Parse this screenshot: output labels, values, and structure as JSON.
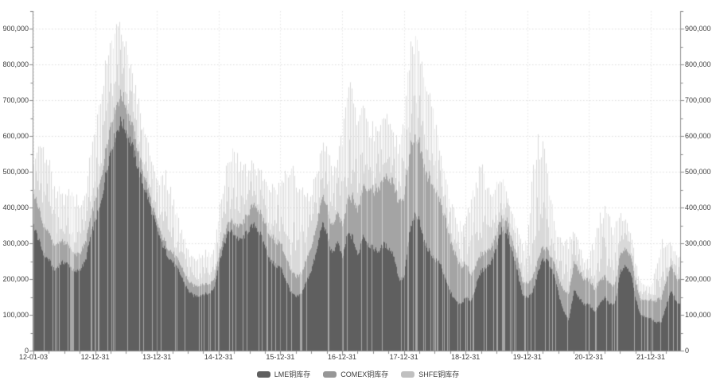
{
  "page": {
    "background": "#ffffff"
  },
  "chart_data": {
    "type": "area",
    "variant": "stacked daily bars",
    "title": "",
    "value_unit": "thousand tonnes (axis shows tonnes)",
    "x_axis": {
      "start": "2012-01",
      "end": "2022-06",
      "interval": "monthly anchors",
      "n_points": 126,
      "tick_labels": [
        "12-01-03",
        "12-12-31",
        "13-12-31",
        "14-12-31",
        "15-12-31",
        "16-12-31",
        "17-12-31",
        "18-12-31",
        "19-12-31",
        "20-12-31",
        "21-12-31"
      ],
      "minor_tick_interval": "3 months"
    },
    "y_axis": {
      "min": 0,
      "max": 950000,
      "major_interval": 100000,
      "minor_interval": 50000,
      "sides": [
        "left",
        "right"
      ],
      "tick_labels": [
        "0",
        "100,000",
        "200,000",
        "300,000",
        "400,000",
        "500,000",
        "600,000",
        "700,000",
        "800,000",
        "900,000"
      ]
    },
    "grid": {
      "horizontal": "dotted at each 100,000",
      "vertical": "faint line at each year tick"
    },
    "legend": {
      "position": "bottom-center",
      "items": [
        {
          "label": "LME铜库存",
          "color": "#5f5f5f"
        },
        {
          "label": "COMEX铜库存",
          "color": "#979797"
        },
        {
          "label": "SHFE铜库存",
          "color": "#c0c0c0"
        }
      ]
    },
    "style": {
      "lme_fill": "#5f5f5f",
      "comex_fill": "#a4a4a4",
      "shfe_fill": "#d9d9d9",
      "axis_color": "#8a8a8a",
      "grid_color": "#dcdcdc",
      "label_color": "#3d3d3d",
      "background": "#ffffff"
    },
    "series": [
      {
        "name": "LME铜库存",
        "values": [
          355,
          310,
          270,
          255,
          225,
          245,
          250,
          240,
          220,
          230,
          250,
          320,
          370,
          410,
          500,
          570,
          615,
          650,
          620,
          585,
          530,
          480,
          440,
          390,
          340,
          300,
          270,
          250,
          230,
          200,
          170,
          155,
          155,
          160,
          160,
          175,
          250,
          300,
          340,
          330,
          310,
          325,
          345,
          355,
          330,
          295,
          255,
          240,
          235,
          200,
          165,
          150,
          160,
          195,
          230,
          280,
          360,
          330,
          270,
          310,
          260,
          330,
          320,
          265,
          330,
          300,
          290,
          280,
          300,
          290,
          270,
          200,
          205,
          330,
          380,
          370,
          300,
          280,
          255,
          250,
          200,
          165,
          140,
          130,
          150,
          140,
          185,
          225,
          235,
          255,
          300,
          345,
          335,
          280,
          225,
          155,
          150,
          165,
          220,
          260,
          250,
          220,
          160,
          110,
          85,
          170,
          150,
          130,
          130,
          110,
          130,
          150,
          130,
          135,
          225,
          240,
          225,
          145,
          100,
          95,
          90,
          78,
          82,
          130,
          170,
          135
        ]
      },
      {
        "name": "COMEX铜库存",
        "values": [
          92,
          88,
          82,
          76,
          70,
          64,
          58,
          54,
          50,
          48,
          50,
          56,
          62,
          68,
          74,
          78,
          80,
          76,
          70,
          60,
          50,
          40,
          30,
          22,
          20,
          22,
          24,
          26,
          27,
          28,
          28,
          29,
          30,
          30,
          28,
          26,
          25,
          26,
          28,
          32,
          38,
          45,
          52,
          58,
          62,
          66,
          70,
          72,
          70,
          65,
          60,
          58,
          60,
          64,
          68,
          72,
          76,
          78,
          80,
          84,
          90,
          100,
          115,
          130,
          145,
          160,
          170,
          180,
          190,
          200,
          210,
          220,
          228,
          232,
          230,
          225,
          218,
          210,
          200,
          185,
          170,
          155,
          130,
          110,
          95,
          75,
          60,
          50,
          45,
          40,
          38,
          36,
          34,
          33,
          35,
          38,
          40,
          42,
          38,
          35,
          32,
          35,
          45,
          60,
          75,
          82,
          78,
          70,
          70,
          66,
          64,
          62,
          58,
          55,
          52,
          50,
          48,
          46,
          45,
          48,
          55,
          62,
          70,
          74,
          72,
          68
        ]
      },
      {
        "name": "SHFE铜库存",
        "values": [
          100,
          205,
          227,
          205,
          170,
          150,
          140,
          158,
          170,
          160,
          150,
          180,
          205,
          225,
          247,
          235,
          225,
          200,
          180,
          160,
          150,
          140,
          132,
          125,
          132,
          180,
          200,
          160,
          120,
          100,
          92,
          86,
          90,
          95,
          92,
          96,
          112,
          160,
          185,
          215,
          180,
          142,
          122,
          112,
          122,
          132,
          142,
          162,
          185,
          245,
          305,
          285,
          240,
          190,
          170,
          152,
          142,
          185,
          160,
          152,
          272,
          325,
          312,
          272,
          232,
          192,
          172,
          182,
          202,
          172,
          162,
          166,
          232,
          282,
          302,
          292,
          252,
          232,
          202,
          162,
          132,
          122,
          112,
          116,
          136,
          232,
          262,
          252,
          202,
          162,
          142,
          112,
          92,
          82,
          92,
          102,
          142,
          300,
          350,
          300,
          230,
          140,
          122,
          152,
          162,
          110,
          80,
          55,
          72,
          152,
          192,
          202,
          182,
          162,
          112,
          92,
          72,
          56,
          46,
          42,
          42,
          102,
          162,
          96,
          62,
          72
        ]
      }
    ]
  }
}
